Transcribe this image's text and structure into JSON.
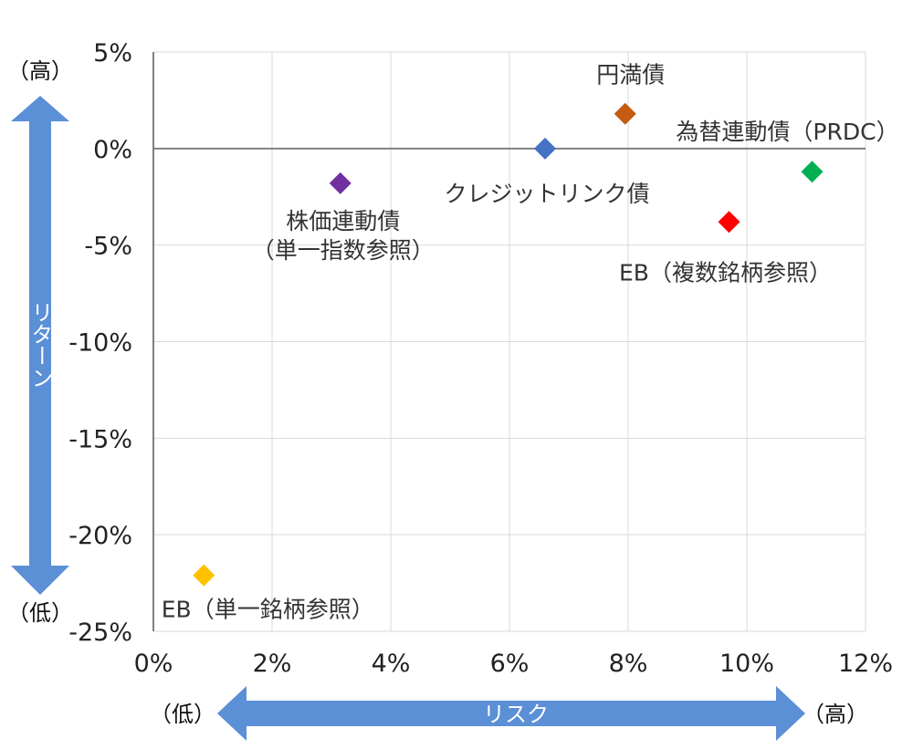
{
  "chart_data": {
    "type": "scatter",
    "x_axis": {
      "range": [
        0,
        12
      ],
      "ticks": [
        0,
        2,
        4,
        6,
        8,
        10,
        12
      ],
      "tick_labels": [
        "0%",
        "2%",
        "4%",
        "6%",
        "8%",
        "10%",
        "12%"
      ],
      "label": "リスク",
      "low_label": "（低）",
      "high_label": "（高）"
    },
    "y_axis": {
      "range": [
        -25,
        5
      ],
      "ticks": [
        5,
        0,
        -5,
        -10,
        -15,
        -20,
        -25
      ],
      "tick_labels": [
        "5%",
        "0%",
        "-5%",
        "-10%",
        "-15%",
        "-20%",
        "-25%"
      ],
      "label": "リターン",
      "low_label": "（低）",
      "high_label": "（高）"
    },
    "grid": true,
    "points": [
      {
        "label": [
          "円満債"
        ],
        "x": 7.95,
        "y": 1.8,
        "color": "#c55a11"
      },
      {
        "label": [
          "為替連動債（PRDC）"
        ],
        "x": 11.1,
        "y": -1.2,
        "color": "#00b050"
      },
      {
        "label": [
          "クレジットリンク債"
        ],
        "x": 6.6,
        "y": 0.0,
        "color": "#4472c4"
      },
      {
        "label": [
          "株価連動債",
          "（単一指数参照）"
        ],
        "x": 3.15,
        "y": -1.8,
        "color": "#7030a0"
      },
      {
        "label": [
          "EB（複数銘柄参照）"
        ],
        "x": 9.7,
        "y": -3.8,
        "color": "#ff0000"
      },
      {
        "label": [
          "EB（単一銘柄参照）"
        ],
        "x": 0.85,
        "y": -22.1,
        "color": "#ffc000"
      }
    ],
    "arrow_color": "#5b8fd6"
  }
}
